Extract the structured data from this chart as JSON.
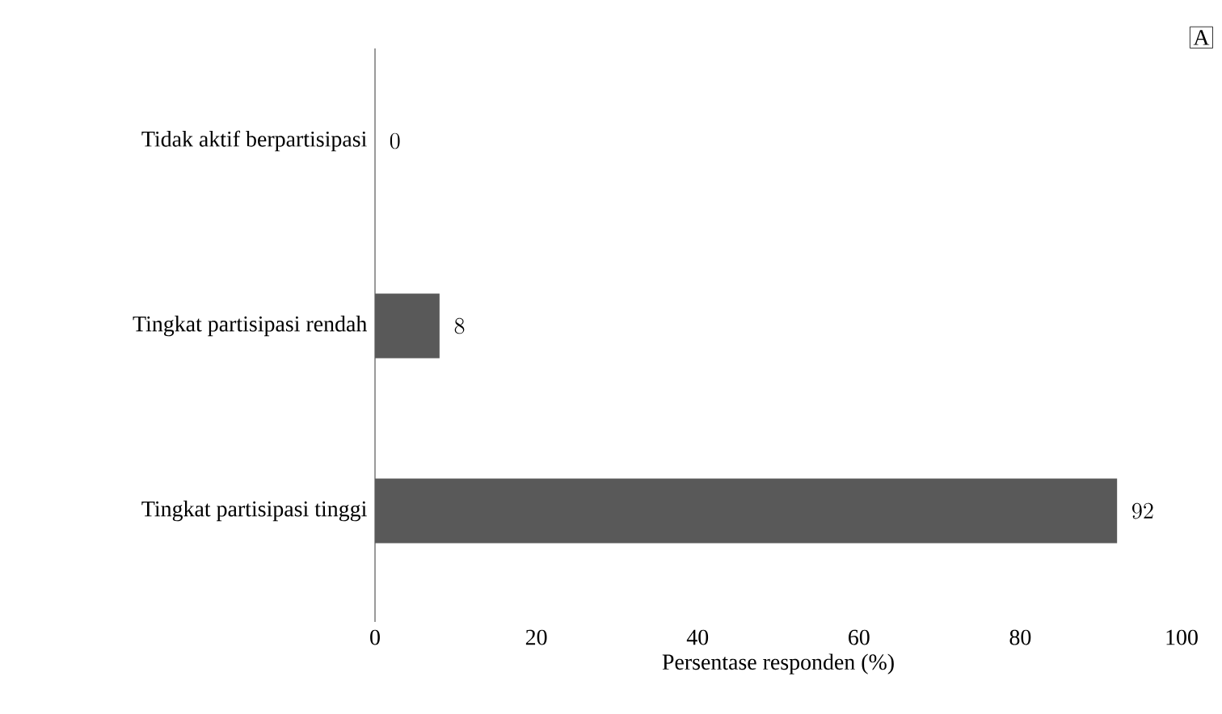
{
  "chart_data": {
    "type": "bar",
    "orientation": "horizontal",
    "categories": [
      "Tidak aktif berpartisipasi",
      "Tingkat partisipasi rendah",
      "Tingkat partisipasi tinggi"
    ],
    "values": [
      0,
      8,
      92
    ],
    "color": "#595959",
    "xlim": [
      0,
      100
    ],
    "xticks": [
      0,
      20,
      40,
      60,
      80,
      100
    ],
    "xlabel": "Persentase responden (%)",
    "data_labels": true,
    "grid": false,
    "annotations": [
      "A"
    ]
  }
}
